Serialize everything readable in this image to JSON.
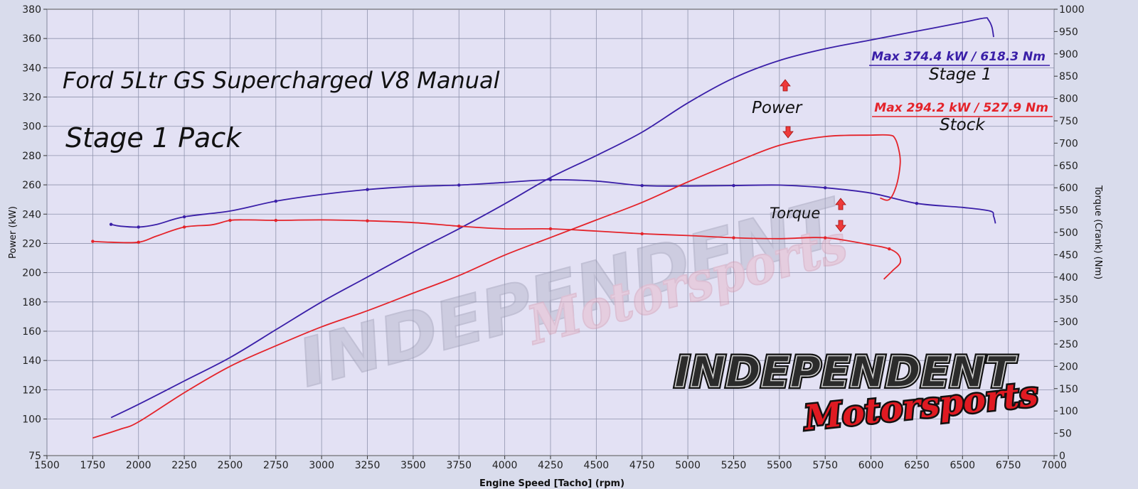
{
  "chart_data": {
    "type": "line",
    "title": "Ford 5Ltr GS Supercharged V8 Manual",
    "subtitle": "Stage 1 Pack",
    "xlabel": "Engine Speed [Tacho] (rpm)",
    "ylabel": "Power (kW)",
    "y2label": "Torque (Crank) (Nm)",
    "xlim": [
      1500,
      7000
    ],
    "ylim": [
      75,
      380
    ],
    "y2lim": [
      0,
      1000
    ],
    "grid": true,
    "x_ticks": [
      1500,
      1750,
      2000,
      2250,
      2500,
      2750,
      3000,
      3250,
      3500,
      3750,
      4000,
      4250,
      4500,
      4750,
      5000,
      5250,
      5500,
      5750,
      6000,
      6250,
      6500,
      6750,
      7000
    ],
    "y_ticks": [
      75,
      100,
      120,
      140,
      160,
      180,
      200,
      220,
      240,
      260,
      280,
      300,
      320,
      340,
      360,
      380
    ],
    "y2_ticks": [
      0,
      50,
      100,
      150,
      200,
      250,
      300,
      350,
      400,
      450,
      500,
      550,
      600,
      650,
      700,
      750,
      800,
      850,
      900,
      950,
      1000
    ],
    "colors": {
      "stage1": "#3a1fa8",
      "stock": "#e4232a",
      "grid": "#8f93ad",
      "background": "#e3e1f4"
    },
    "series": [
      {
        "key": "stage1_power",
        "axis": "left",
        "color": "#3a1fa8",
        "markers": false,
        "x": [
          1850,
          2000,
          2250,
          2500,
          2750,
          3000,
          3250,
          3500,
          3750,
          4000,
          4250,
          4500,
          4750,
          5000,
          5250,
          5500,
          5750,
          6000,
          6250,
          6500,
          6620,
          6640,
          6660,
          6670
        ],
        "y": [
          101,
          110,
          126,
          142,
          161,
          180,
          197,
          214,
          230,
          247,
          265,
          280,
          296,
          316,
          333,
          345,
          353,
          359,
          365,
          371,
          374,
          373,
          368,
          361
        ]
      },
      {
        "key": "stage1_torque",
        "axis": "right",
        "color": "#3a1fa8",
        "markers": true,
        "x": [
          1850,
          1900,
          2000,
          2100,
          2250,
          2500,
          2750,
          3000,
          3250,
          3500,
          3750,
          4000,
          4250,
          4500,
          4750,
          5000,
          5250,
          5500,
          5750,
          6000,
          6250,
          6500,
          6650,
          6670,
          6680
        ],
        "y": [
          518,
          514,
          512,
          518,
          535,
          548,
          570,
          585,
          596,
          603,
          606,
          612,
          618,
          615,
          605,
          604,
          605,
          606,
          600,
          588,
          565,
          556,
          548,
          536,
          520
        ]
      },
      {
        "key": "stock_power",
        "axis": "left",
        "color": "#e4232a",
        "markers": false,
        "x": [
          1750,
          1900,
          2000,
          2250,
          2500,
          2750,
          3000,
          3250,
          3500,
          3750,
          4000,
          4250,
          4500,
          4750,
          5000,
          5250,
          5500,
          5750,
          6000,
          6100,
          6130,
          6150,
          6160,
          6140,
          6100,
          6050
        ],
        "y": [
          87,
          93,
          98,
          118,
          136,
          150,
          163,
          174,
          186,
          198,
          212,
          224,
          236,
          248,
          262,
          275,
          287,
          293,
          294,
          294,
          292,
          285,
          275,
          260,
          250,
          251
        ]
      },
      {
        "key": "stock_torque",
        "axis": "right",
        "color": "#e4232a",
        "markers": true,
        "x": [
          1750,
          1850,
          2000,
          2100,
          2250,
          2400,
          2500,
          2600,
          2750,
          3000,
          3250,
          3500,
          3750,
          4000,
          4250,
          4500,
          4750,
          5000,
          5250,
          5500,
          5750,
          6000,
          6100,
          6150,
          6160,
          6120,
          6070
        ],
        "y": [
          480,
          478,
          478,
          492,
          512,
          517,
          527,
          528,
          527,
          528,
          526,
          522,
          514,
          508,
          508,
          503,
          497,
          493,
          488,
          486,
          488,
          472,
          463,
          450,
          432,
          415,
          395
        ]
      }
    ],
    "annotations": {
      "stage1_max": "Max 374.4 kW  / 618.3 Nm",
      "stage1_label": "Stage 1",
      "stock_max": "Max 294.2 kW  / 527.9 Nm",
      "stock_label": "Stock",
      "power_label": "Power",
      "torque_label": "Torque"
    }
  },
  "watermark": {
    "line1": "INDEPENDENT",
    "line2": "Motorsports"
  },
  "logo": {
    "line1": "INDEPENDENT",
    "line2": "Motorsports"
  }
}
